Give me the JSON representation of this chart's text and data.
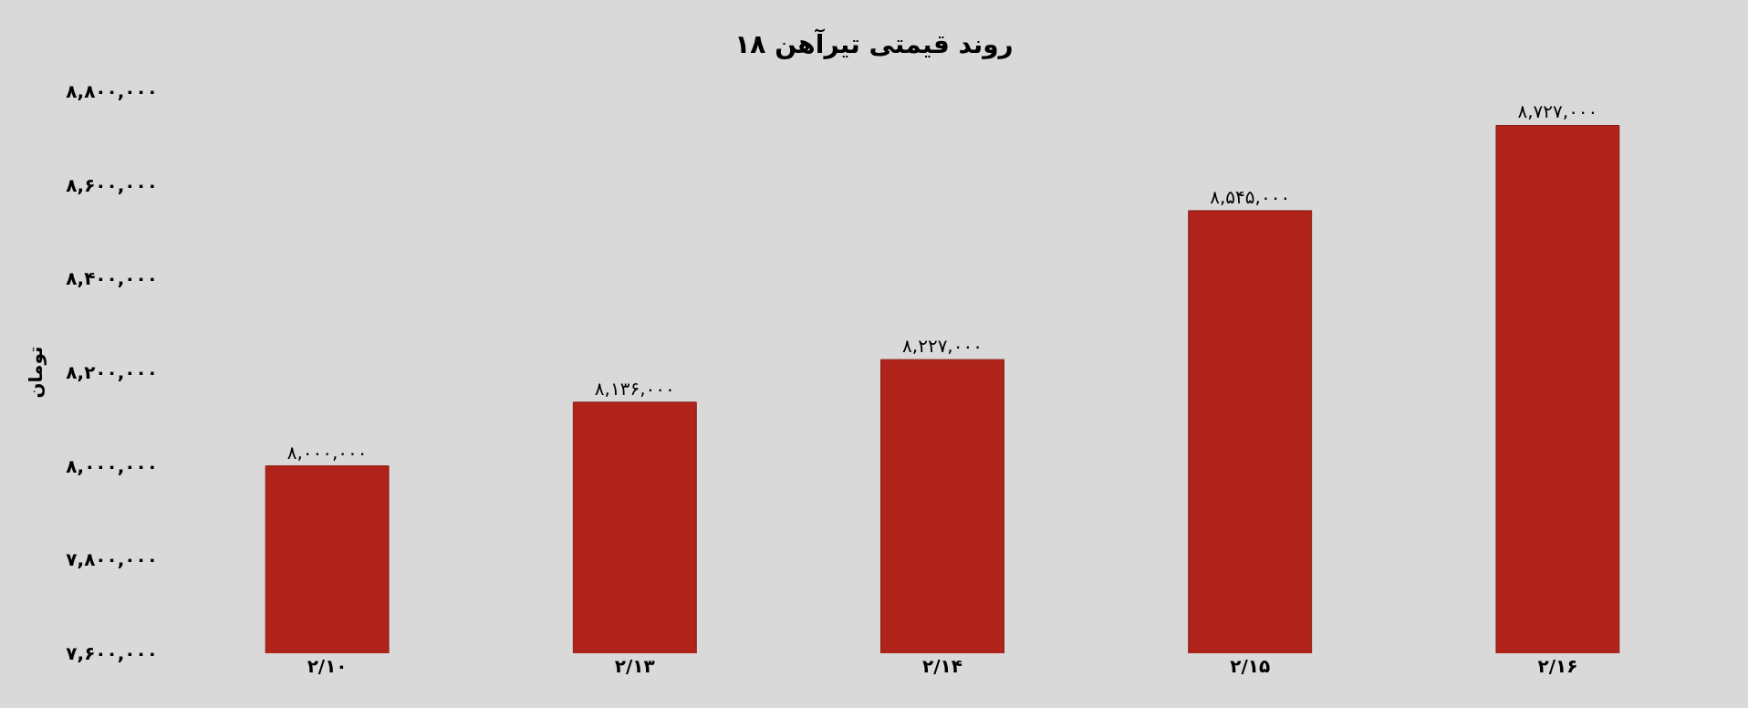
{
  "chart_data": {
    "type": "bar",
    "title": "روند قیمتی تیرآهن ۱۸",
    "ylabel": "تومان",
    "categories": [
      "۲/۱۰",
      "۲/۱۳",
      "۲/۱۴",
      "۲/۱۵",
      "۲/۱۶"
    ],
    "values": [
      8000000,
      8136000,
      8227000,
      8545000,
      8727000
    ],
    "value_labels": [
      "۸,۰۰۰,۰۰۰",
      "۸,۱۳۶,۰۰۰",
      "۸,۲۲۷,۰۰۰",
      "۸,۵۴۵,۰۰۰",
      "۸,۷۲۷,۰۰۰"
    ],
    "color": "#b0231a",
    "ylim": [
      7600000,
      8800000
    ],
    "yticks": [
      {
        "value": 7600000,
        "label": "۷,۶۰۰,۰۰۰"
      },
      {
        "value": 7800000,
        "label": "۷,۸۰۰,۰۰۰"
      },
      {
        "value": 8000000,
        "label": "۸,۰۰۰,۰۰۰"
      },
      {
        "value": 8200000,
        "label": "۸,۲۰۰,۰۰۰"
      },
      {
        "value": 8400000,
        "label": "۸,۴۰۰,۰۰۰"
      },
      {
        "value": 8600000,
        "label": "۸,۶۰۰,۰۰۰"
      },
      {
        "value": 8800000,
        "label": "۸,۸۰۰,۰۰۰"
      }
    ],
    "grid": false,
    "legend": false
  }
}
